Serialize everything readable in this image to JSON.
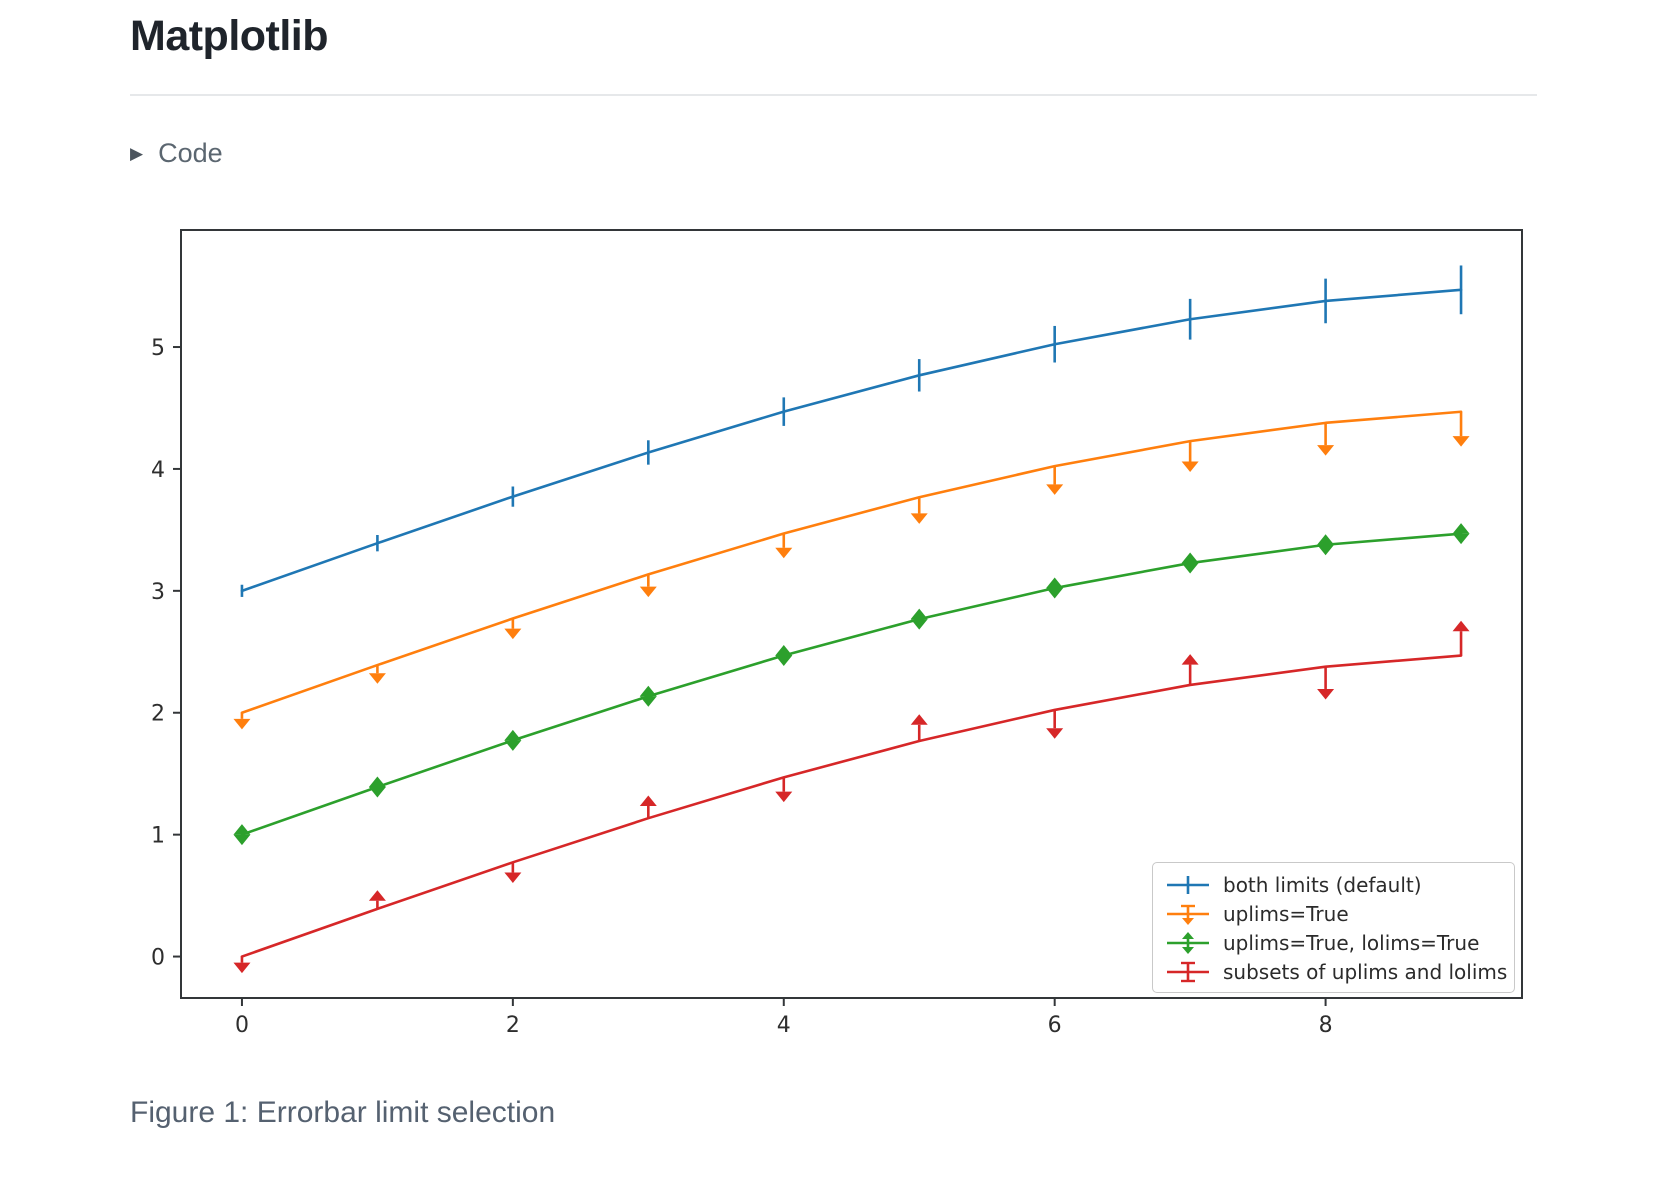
{
  "page": {
    "title": "Matplotlib",
    "code_toggle_label": "Code",
    "caption": "Figure 1: Errorbar limit selection"
  },
  "chart_data": {
    "type": "line",
    "description": "Matplotlib errorbar limit selection example: four offset sine curves with error bars using upper/lower limit carets",
    "x": [
      0,
      1,
      2,
      3,
      4,
      5,
      6,
      7,
      8,
      9
    ],
    "yerr": [
      0.05,
      0.067,
      0.083,
      0.1,
      0.117,
      0.133,
      0.15,
      0.167,
      0.183,
      0.2
    ],
    "xlim": [
      -0.45,
      9.45
    ],
    "ylim": [
      -0.34,
      5.96
    ],
    "xticks": [
      0,
      2,
      4,
      6,
      8
    ],
    "yticks": [
      0,
      1,
      2,
      3,
      4,
      5
    ],
    "grid": false,
    "legend_position": "lower right",
    "axis_color": "#333639",
    "tick_label_color": "#2e2e2e",
    "series": [
      {
        "name": "both limits (default)",
        "color": "#1f77b4",
        "limits": "both",
        "values": [
          3.0,
          3.391,
          3.773,
          4.135,
          4.47,
          4.768,
          5.023,
          5.228,
          5.378,
          5.469
        ]
      },
      {
        "name": "uplims=True",
        "color": "#ff7f0e",
        "limits": "uplims",
        "values": [
          2.0,
          2.391,
          2.773,
          3.135,
          3.47,
          3.768,
          4.023,
          4.228,
          4.378,
          4.469
        ]
      },
      {
        "name": "uplims=True, lolims=True",
        "color": "#2ca02c",
        "limits": "uplims+lolims",
        "values": [
          1.0,
          1.391,
          1.773,
          2.135,
          2.47,
          2.768,
          3.023,
          3.228,
          3.378,
          3.469
        ]
      },
      {
        "name": "subsets of uplims and lolims",
        "color": "#d62728",
        "limits": "alternating",
        "arrow_dirs": [
          "down",
          "up",
          "down",
          "up",
          "down",
          "up",
          "down",
          "up",
          "down",
          "up"
        ],
        "values": [
          0.0,
          0.391,
          0.773,
          1.135,
          1.47,
          1.768,
          2.023,
          2.228,
          2.378,
          2.469
        ]
      }
    ]
  }
}
